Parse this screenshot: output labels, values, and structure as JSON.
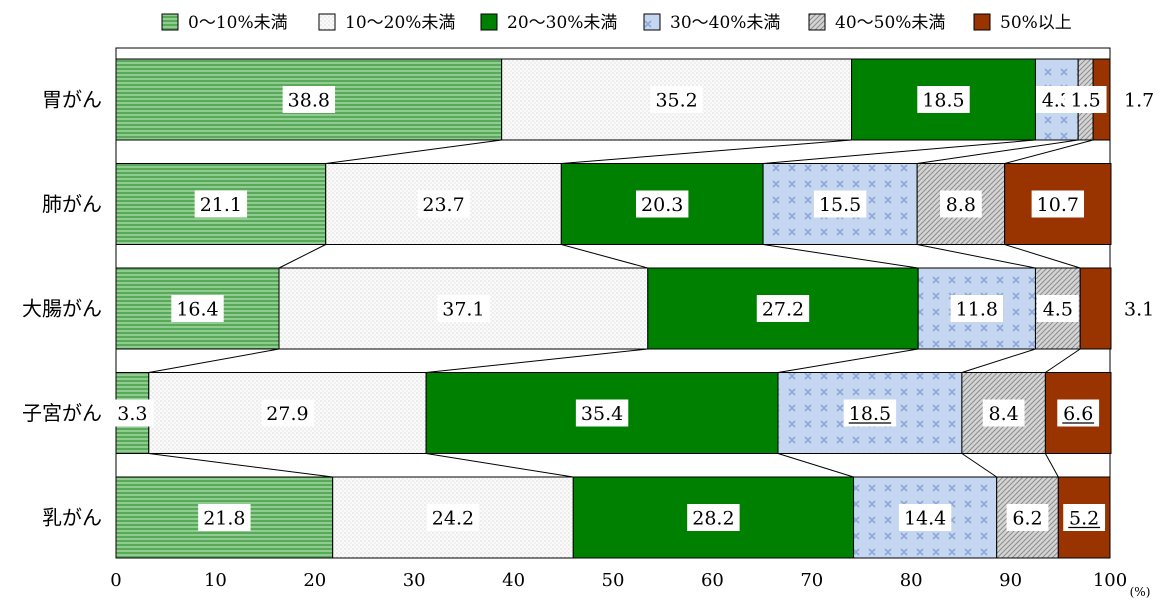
{
  "chart_data": {
    "type": "bar",
    "orientation": "horizontal",
    "stacked": true,
    "categories": [
      "胃がん",
      "肺がん",
      "大腸がん",
      "子宮がん",
      "乳がん"
    ],
    "series": [
      {
        "name": "0～10%未満",
        "values": [
          38.8,
          21.1,
          16.4,
          3.3,
          21.8
        ],
        "color": "#6ab86a",
        "pattern": "horizontal-stripes"
      },
      {
        "name": "10～20%未満",
        "values": [
          35.2,
          23.7,
          37.1,
          27.9,
          24.2
        ],
        "color": "#f4f4f4",
        "pattern": "dots"
      },
      {
        "name": "20～30%未満",
        "values": [
          18.5,
          20.3,
          27.2,
          35.4,
          28.2
        ],
        "color": "#008000",
        "pattern": "solid"
      },
      {
        "name": "30～40%未満",
        "values": [
          4.3,
          15.5,
          11.8,
          18.5,
          14.4
        ],
        "color": "#b8cce8",
        "pattern": "crosses"
      },
      {
        "name": "40～50%未満",
        "values": [
          1.5,
          8.8,
          4.5,
          8.4,
          6.2
        ],
        "color": "#c0c0c0",
        "pattern": "diagonal-hatch"
      },
      {
        "name": "50%以上",
        "values": [
          1.7,
          10.7,
          3.1,
          6.6,
          5.2
        ],
        "color": "#993300",
        "pattern": "solid"
      }
    ],
    "data_labels": [
      [
        "38.8",
        "35.2",
        "18.5",
        "4.3",
        "1.5",
        "1.7"
      ],
      [
        "21.1",
        "23.7",
        "20.3",
        "15.5",
        "8.8",
        "10.7"
      ],
      [
        "16.4",
        "37.1",
        "27.2",
        "11.8",
        "4.5",
        "3.1"
      ],
      [
        "3.3",
        "27.9",
        "35.4",
        "18.5",
        "8.4",
        "6.6"
      ],
      [
        "21.8",
        "24.2",
        "28.2",
        "14.4",
        "6.2",
        "5.2"
      ]
    ],
    "underlined_labels": [
      [
        3,
        3
      ],
      [
        3,
        5
      ],
      [
        4,
        5
      ]
    ],
    "xlim": [
      0,
      100
    ],
    "x_ticks": [
      "0",
      "10",
      "20",
      "30",
      "40",
      "50",
      "60",
      "70",
      "80",
      "90",
      "100"
    ],
    "x_unit": "(%)",
    "legend_position": "top",
    "connector_lines": true,
    "grid": false
  }
}
